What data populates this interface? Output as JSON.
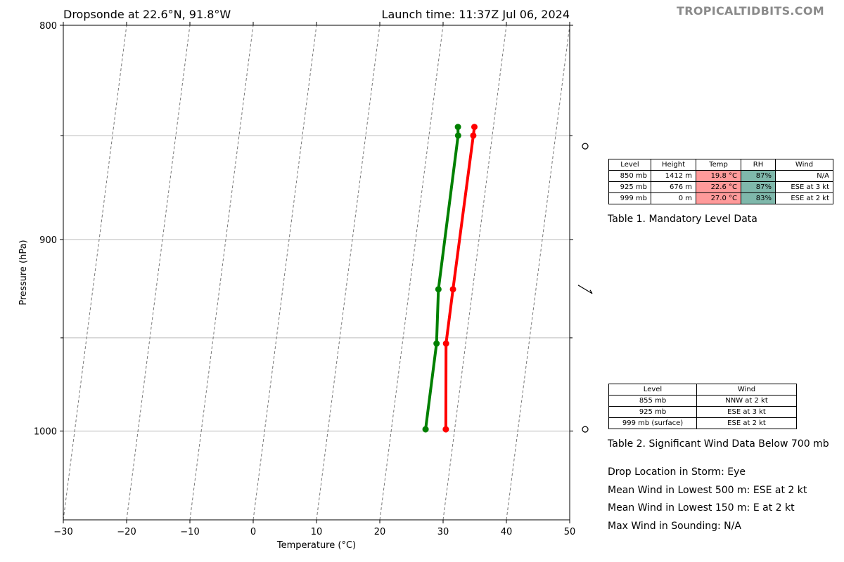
{
  "header": {
    "left_title": "Dropsonde at 22.6°N, 91.8°W",
    "right_title": "Launch time: 11:37Z Jul 06, 2024",
    "watermark": "TROPICALTIDBITS.COM"
  },
  "chart_data": {
    "type": "line",
    "xlabel": "Temperature (°C)",
    "ylabel": "Pressure (hPa)",
    "xlim": [
      -30,
      50
    ],
    "ylim": [
      1050,
      800
    ],
    "y_scale": "log",
    "x_ticks": [
      "−30",
      "−20",
      "−10",
      "0",
      "10",
      "20",
      "30",
      "40",
      "50"
    ],
    "y_ticks": [
      "800",
      "900",
      "1000"
    ],
    "grid_pressures": [
      850,
      900,
      950,
      1000
    ],
    "skew_isotherms": true,
    "series": [
      {
        "color": "#ff0000",
        "points": [
          [
            27.0,
            846
          ],
          [
            27.0,
            850
          ],
          [
            26.9,
            925
          ],
          [
            26.9,
            953
          ],
          [
            28.6,
            999
          ]
        ]
      },
      {
        "color": "#008000",
        "points": [
          [
            24.4,
            846
          ],
          [
            24.6,
            850
          ],
          [
            24.6,
            925
          ],
          [
            25.4,
            953
          ],
          [
            25.4,
            999
          ]
        ]
      }
    ],
    "wind_barbs": [
      {
        "pressure": 855,
        "symbol": "calm"
      },
      {
        "pressure": 925,
        "symbol": "barb"
      },
      {
        "pressure": 999,
        "symbol": "calm"
      }
    ]
  },
  "table1": {
    "headers": [
      "Level",
      "Height",
      "Temp",
      "RH",
      "Wind"
    ],
    "rows": [
      [
        "850 mb",
        "1412 m",
        "19.8 °C",
        "87%",
        "N/A"
      ],
      [
        "925 mb",
        "676 m",
        "22.6 °C",
        "87%",
        "ESE at 3 kt"
      ],
      [
        "999 mb",
        "0 m",
        "27.0 °C",
        "83%",
        "ESE at 2 kt"
      ]
    ],
    "temp_color": "#ff9a9a",
    "rh_color": "#7fb8ab",
    "caption": "Table 1. Mandatory Level Data"
  },
  "table2": {
    "headers": [
      "Level",
      "Wind"
    ],
    "rows": [
      [
        "855 mb",
        "NNW at 2 kt"
      ],
      [
        "925 mb",
        "ESE at 3 kt"
      ],
      [
        "999 mb (surface)",
        "ESE at 2 kt"
      ]
    ],
    "caption": "Table 2. Significant Wind Data Below 700 mb"
  },
  "info": {
    "drop_location": "Drop Location in Storm: Eye",
    "mean_wind_500": "Mean Wind in Lowest 500 m:  ESE at 2 kt",
    "mean_wind_150": "Mean Wind in Lowest 150 m:  E at 2 kt",
    "max_wind": "Max Wind in Sounding:  N/A"
  }
}
